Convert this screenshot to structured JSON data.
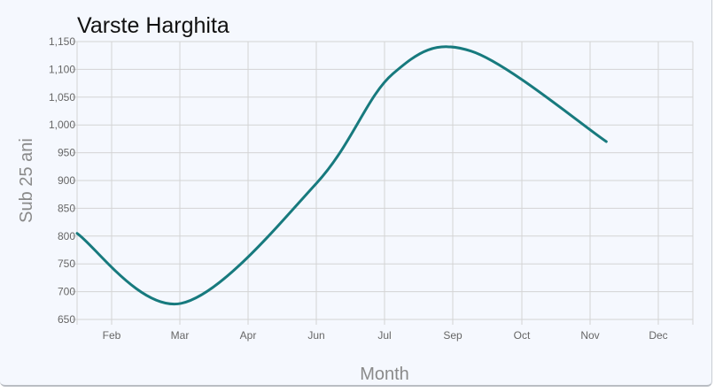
{
  "chart_data": {
    "type": "line",
    "title": "Varste Harghita",
    "xlabel": "Month",
    "ylabel": "Sub 25 ani",
    "x_ticks": [
      "Feb",
      "Mar",
      "Apr",
      "Jun",
      "Jul",
      "Sep",
      "Oct",
      "Nov",
      "Dec"
    ],
    "y_ticks": [
      "650",
      "700",
      "750",
      "800",
      "850",
      "900",
      "950",
      "1,000",
      "1,050",
      "1,100",
      "1,150"
    ],
    "ylim": [
      650,
      1150
    ],
    "xlim": [
      "2020-01-15",
      "2020-12-15"
    ],
    "grid": true,
    "legend": "none",
    "color": "#177a7e",
    "series": [
      {
        "x": [
          "2020-01-15",
          "2020-03-15",
          "2020-06-01",
          "2020-07-15",
          "2020-08-29",
          "2020-11-15"
        ],
        "values": [
          805,
          679,
          895,
          1092,
          1133,
          970
        ]
      }
    ]
  }
}
